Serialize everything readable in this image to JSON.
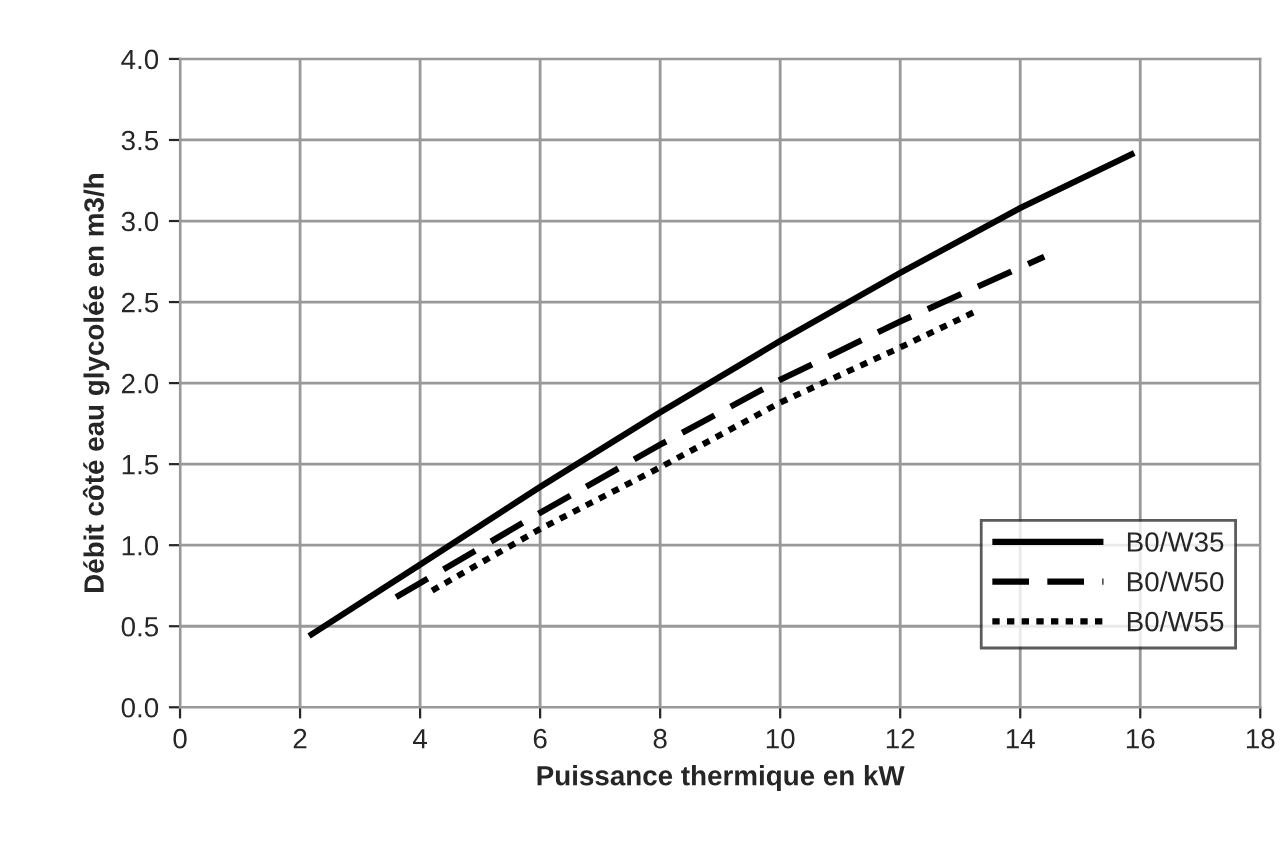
{
  "chart_data": {
    "type": "line",
    "xlabel": "Puissance thermique en kW",
    "ylabel": "Débit côté eau glycolée en m3/h",
    "xlim": [
      0,
      18
    ],
    "xticks": [
      0,
      2,
      4,
      6,
      8,
      10,
      12,
      14,
      16,
      18
    ],
    "ylim": [
      0,
      4
    ],
    "yticks": [
      {
        "value": 0,
        "label": "0.0"
      },
      {
        "value": 0.5,
        "label": "0.5"
      },
      {
        "value": 1,
        "label": "1.0"
      },
      {
        "value": 1.5,
        "label": "1.5"
      },
      {
        "value": 2,
        "label": "2.0"
      },
      {
        "value": 2.5,
        "label": "2.5"
      },
      {
        "value": 3,
        "label": "3.0"
      },
      {
        "value": 3.5,
        "label": "3.5"
      },
      {
        "value": 4,
        "label": "4.0"
      }
    ],
    "grid": true,
    "legend": "bottom right",
    "marker": "none",
    "series": [
      {
        "name": "B0/W35",
        "color": "#000000",
        "line_style": "solid",
        "x": [
          2.15,
          4,
          6,
          8,
          10,
          12,
          14,
          15.9
        ],
        "values": [
          0.44,
          0.88,
          1.36,
          1.82,
          2.26,
          2.68,
          3.08,
          3.42
        ]
      },
      {
        "name": "B0/W50",
        "color": "#000000",
        "line_style": "dashed",
        "x": [
          3.6,
          6,
          8,
          10,
          12,
          14.4
        ],
        "values": [
          0.68,
          1.2,
          1.62,
          2.02,
          2.38,
          2.78
        ]
      },
      {
        "name": "B0/W55",
        "color": "#000000",
        "line_style": "dotted",
        "x": [
          4.2,
          6,
          8,
          10,
          12,
          13.3
        ],
        "values": [
          0.72,
          1.1,
          1.48,
          1.88,
          2.22,
          2.45
        ]
      }
    ]
  }
}
